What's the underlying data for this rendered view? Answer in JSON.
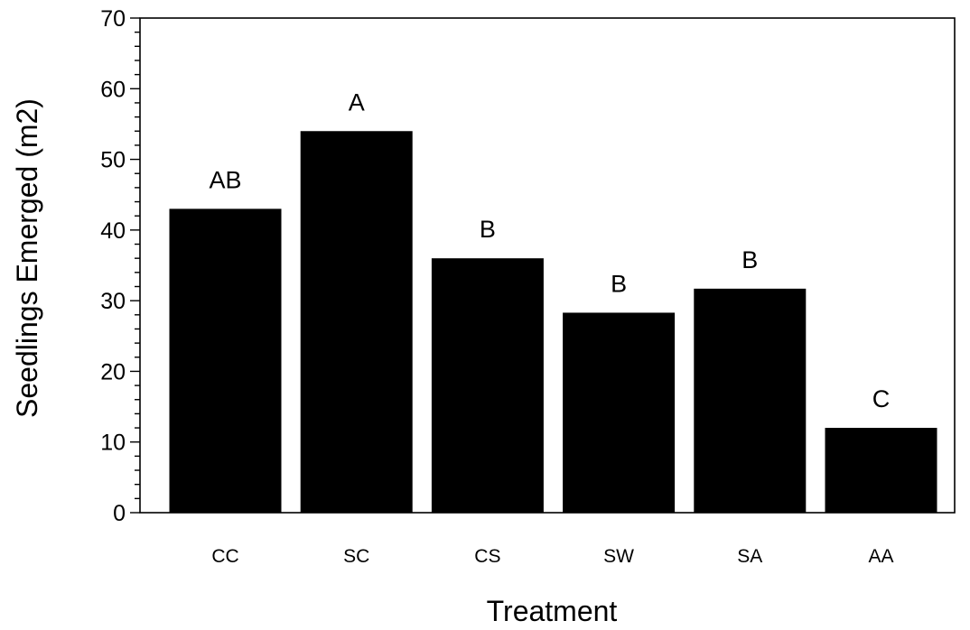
{
  "chart_data": {
    "type": "bar",
    "categories": [
      "CC",
      "SC",
      "CS",
      "SW",
      "SA",
      "AA"
    ],
    "values": [
      43,
      54,
      36,
      28.3,
      31.7,
      12
    ],
    "bar_labels": [
      "AB",
      "A",
      "B",
      "B",
      "B",
      "C"
    ],
    "xlabel": "Treatment",
    "ylabel": "Seedlings Emerged (m2)",
    "ylim": [
      0,
      70
    ],
    "yticks": [
      0,
      10,
      20,
      30,
      40,
      50,
      60,
      70
    ],
    "ytick_labels": [
      "0",
      "10",
      "20",
      "30",
      "40",
      "50",
      "60",
      "70"
    ],
    "grid": false,
    "colors": {
      "bar": "#000000"
    }
  }
}
